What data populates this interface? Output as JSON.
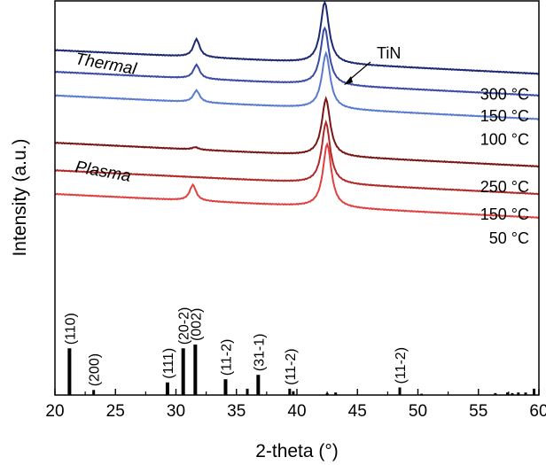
{
  "chart_data": {
    "type": "line",
    "xlabel": "2-theta (°)",
    "ylabel": "Intensity (a.u.)",
    "xlim": [
      20,
      60
    ],
    "xticks": [
      20,
      25,
      30,
      35,
      40,
      45,
      50,
      55,
      60
    ],
    "y_ticks_shown": false,
    "grid": false,
    "annotations": {
      "peak_label": "TiN",
      "group_thermal": "Thermal",
      "group_plasma": "Plasma"
    },
    "series": [
      {
        "name": "300 °C",
        "group": "Thermal",
        "color": "#1e2870",
        "offset": 0.875,
        "peaks": [
          {
            "x": 31.7,
            "h": 0.045
          },
          {
            "x": 42.3,
            "h": 0.155
          }
        ]
      },
      {
        "name": "150 °C",
        "group": "Thermal",
        "color": "#3a4aa8",
        "offset": 0.82,
        "peaks": [
          {
            "x": 31.7,
            "h": 0.035
          },
          {
            "x": 42.3,
            "h": 0.145
          }
        ]
      },
      {
        "name": "100 °C",
        "group": "Thermal",
        "color": "#5a7ad0",
        "offset": 0.76,
        "peaks": [
          {
            "x": 31.7,
            "h": 0.03
          },
          {
            "x": 42.4,
            "h": 0.14
          }
        ]
      },
      {
        "name": "250 °C",
        "group": "Plasma",
        "color": "#7a1515",
        "offset": 0.64,
        "peaks": [
          {
            "x": 31.6,
            "h": 0.006
          },
          {
            "x": 42.4,
            "h": 0.145
          }
        ]
      },
      {
        "name": "150 °C",
        "group": "Plasma",
        "color": "#b02828",
        "offset": 0.57,
        "peaks": [
          {
            "x": 42.4,
            "h": 0.155
          }
        ]
      },
      {
        "name": "50 °C",
        "group": "Plasma",
        "color": "#e04040",
        "offset": 0.51,
        "peaks": [
          {
            "x": 31.4,
            "h": 0.04
          },
          {
            "x": 42.5,
            "h": 0.16
          }
        ]
      }
    ],
    "reference_lines": [
      {
        "x": 21.2,
        "h": 0.74,
        "label": "(110)"
      },
      {
        "x": 23.2,
        "h": 0.08,
        "label": "(200)"
      },
      {
        "x": 29.3,
        "h": 0.2,
        "label": "(111)"
      },
      {
        "x": 30.6,
        "h": 0.74,
        "label": "(20-2)"
      },
      {
        "x": 31.6,
        "h": 0.8,
        "label": "(002)"
      },
      {
        "x": 34.1,
        "h": 0.25,
        "label": "(11-2)"
      },
      {
        "x": 35.9,
        "h": 0.1,
        "label": ""
      },
      {
        "x": 36.8,
        "h": 0.32,
        "label": "(31-1)"
      },
      {
        "x": 39.4,
        "h": 0.1,
        "label": "(11-2)"
      },
      {
        "x": 39.7,
        "h": 0.06,
        "label": ""
      },
      {
        "x": 42.5,
        "h": 0.03,
        "label": ""
      },
      {
        "x": 43.2,
        "h": 0.04,
        "label": ""
      },
      {
        "x": 48.5,
        "h": 0.12,
        "label": "(11-2)"
      },
      {
        "x": 50.3,
        "h": 0.02,
        "label": ""
      },
      {
        "x": 56.4,
        "h": 0.03,
        "label": ""
      },
      {
        "x": 57.4,
        "h": 0.04,
        "label": ""
      },
      {
        "x": 57.8,
        "h": 0.03,
        "label": ""
      },
      {
        "x": 58.3,
        "h": 0.04,
        "label": ""
      },
      {
        "x": 58.9,
        "h": 0.04,
        "label": ""
      },
      {
        "x": 59.6,
        "h": 0.1,
        "label": ""
      }
    ]
  }
}
